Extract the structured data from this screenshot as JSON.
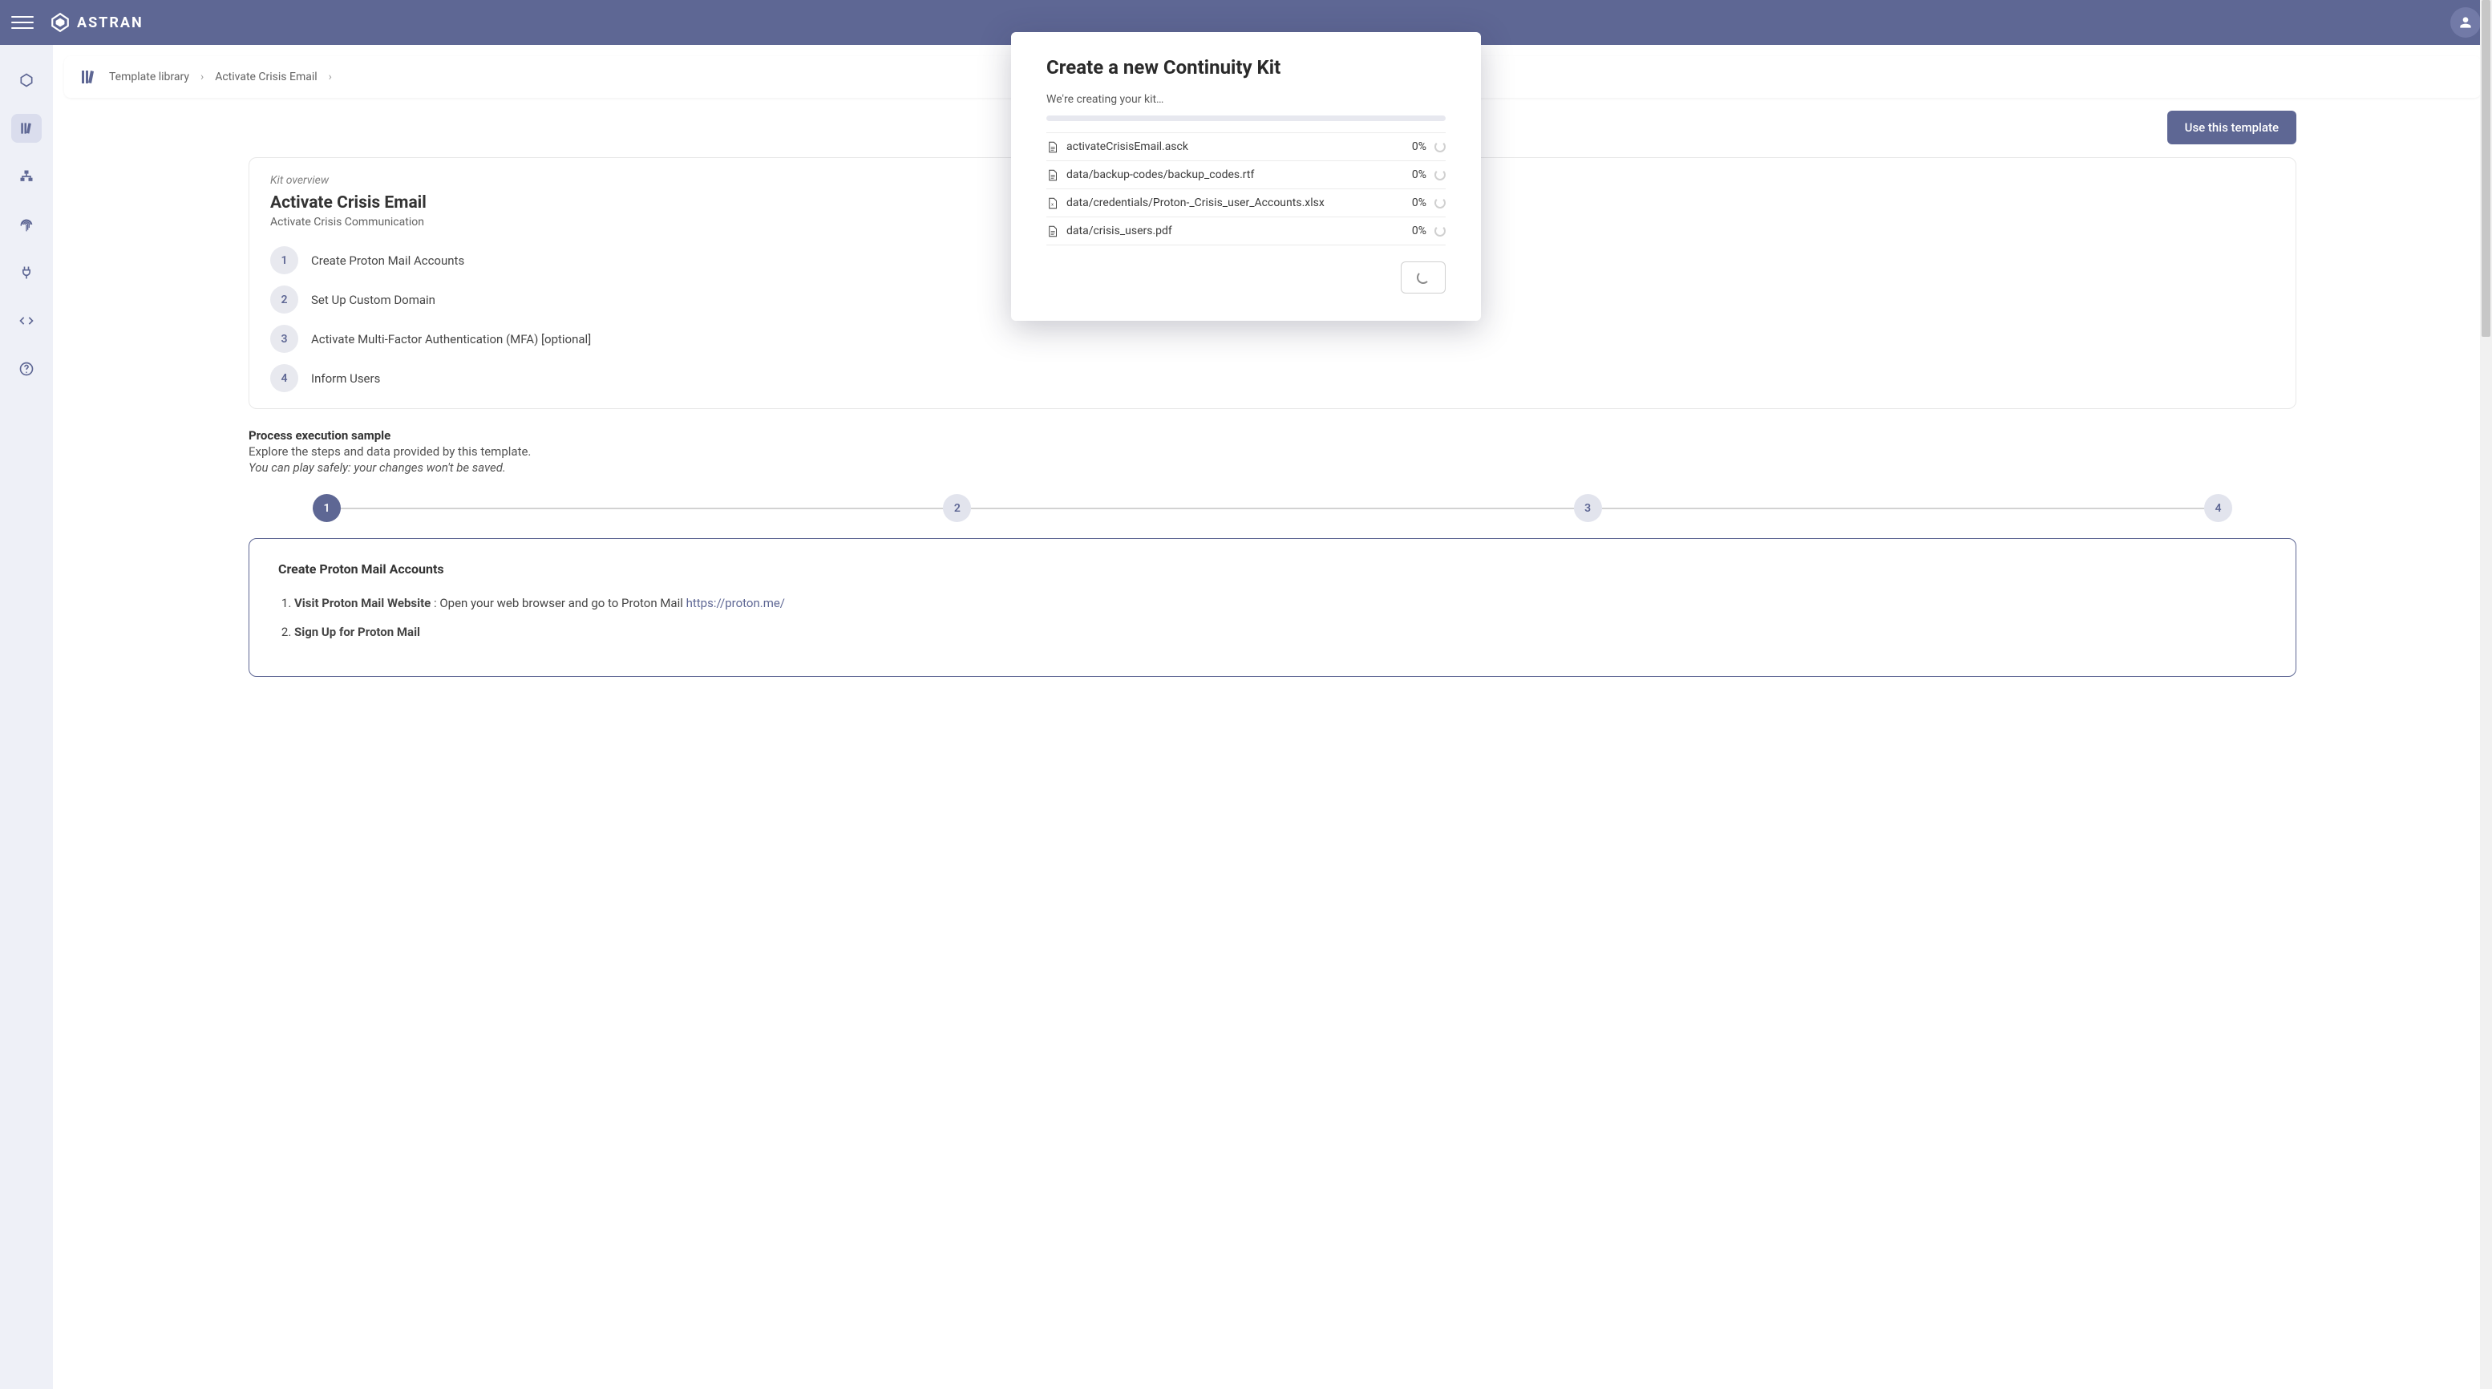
{
  "brand": {
    "name": "ASTRAN"
  },
  "breadcrumb": {
    "root": "Template library",
    "page": "Activate Crisis Email"
  },
  "actions": {
    "use_template": "Use this template"
  },
  "kit": {
    "overview_label": "Kit overview",
    "title": "Activate Crisis Email",
    "subtitle": "Activate Crisis Communication",
    "steps": [
      "Create Proton Mail Accounts",
      "Set Up Custom Domain",
      "Activate Multi-Factor Authentication (MFA) [optional]",
      "Inform Users"
    ]
  },
  "process": {
    "heading": "Process execution sample",
    "line": "Explore the steps and data provided by this template.",
    "note": "You can play safely: your changes won't be saved."
  },
  "stepper": {
    "active_index": 0,
    "labels": [
      "1",
      "2",
      "3",
      "4"
    ]
  },
  "detail": {
    "title": "Create Proton Mail Accounts",
    "items": [
      {
        "lead": "Visit Proton Mail Website",
        "rest": " : Open your web browser and go to Proton Mail ",
        "link_text": "https://proton.me/",
        "link_href": "https://proton.me/"
      },
      {
        "lead": "Sign Up for Proton Mail",
        "rest": "",
        "link_text": "",
        "link_href": ""
      }
    ]
  },
  "modal": {
    "title": "Create a new Continuity Kit",
    "subtitle": "We're creating your kit…",
    "progress_pct": 0,
    "files": [
      {
        "name": "activateCrisisEmail.asck",
        "pct": "0%",
        "kind": "doc"
      },
      {
        "name": "data/backup-codes/backup_codes.rtf",
        "pct": "0%",
        "kind": "doc"
      },
      {
        "name": "data/credentials/Proton-_Crisis_user_Accounts.xlsx",
        "pct": "0%",
        "kind": "xls"
      },
      {
        "name": "data/crisis_users.pdf",
        "pct": "0%",
        "kind": "doc"
      }
    ]
  },
  "colors": {
    "primary": "#565f8f",
    "rail_bg": "#eef0f7",
    "rail_active": "#d8dcec",
    "muted_bg": "#e7e8ef",
    "border": "#e7e7e7",
    "text": "#2a2a2a",
    "text_muted": "#5b5b5b"
  }
}
